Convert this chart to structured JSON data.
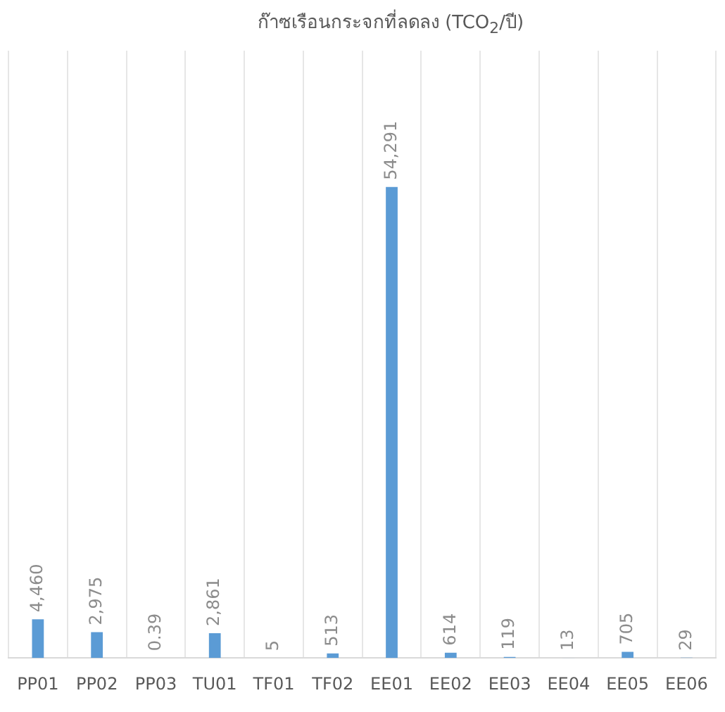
{
  "chart_data": {
    "type": "bar",
    "title": "ก๊าซเรือนกระจกที่ลดลง (TCO$_{2}$/ปี)",
    "categories": [
      "PP01",
      "PP02",
      "PP03",
      "TU01",
      "TF01",
      "TF02",
      "EE01",
      "EE02",
      "EE03",
      "EE04",
      "EE05",
      "EE06"
    ],
    "values": [
      4460,
      2975,
      0.39,
      2861,
      5,
      513,
      54291,
      614,
      119,
      13,
      705,
      29
    ],
    "value_labels": [
      "4,460",
      "2,975",
      "0.39",
      "2,861",
      "5",
      "513",
      "54,291",
      "614",
      "119",
      "13",
      "705",
      "29"
    ],
    "color": "#5b9bd5",
    "grid": "x",
    "legend": false
  }
}
